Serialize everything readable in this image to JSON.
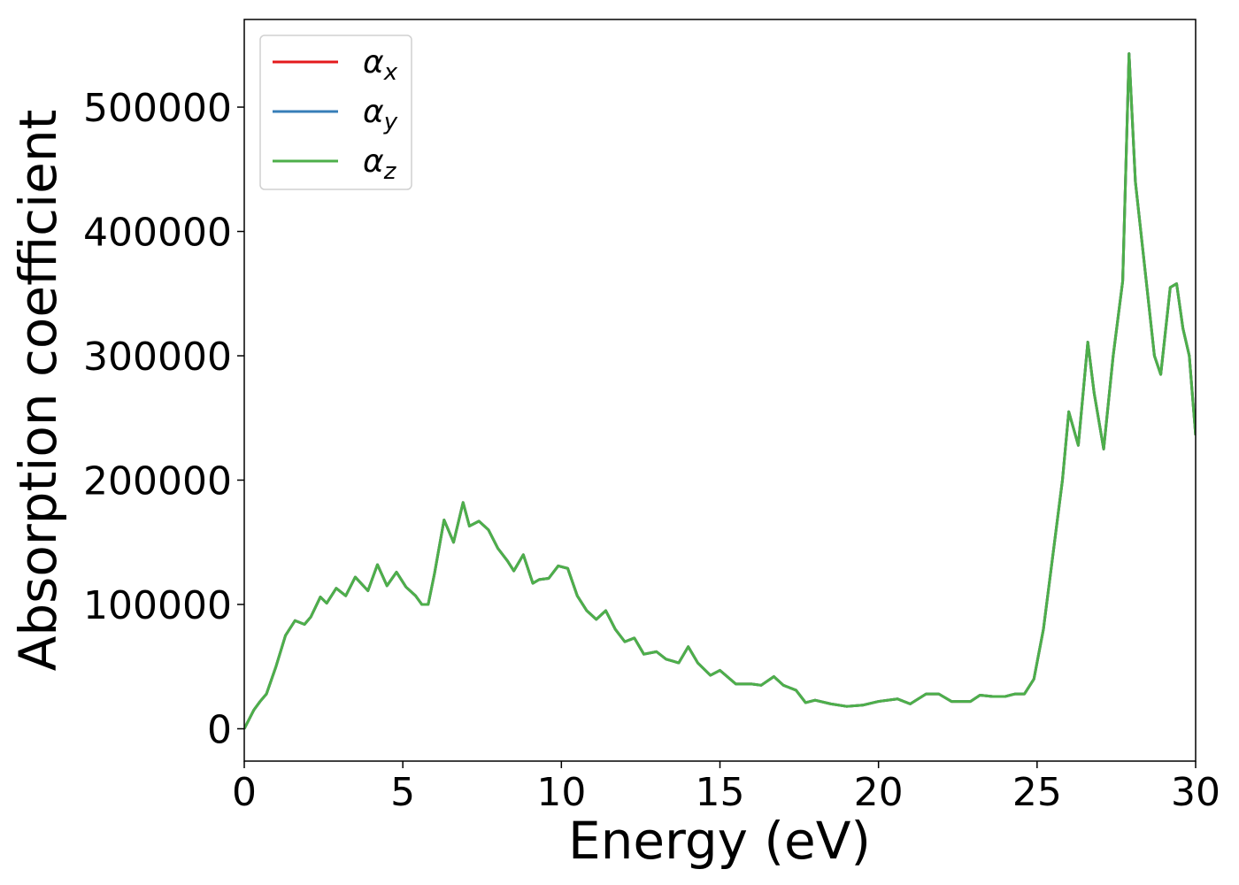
{
  "chart_data": {
    "type": "line",
    "xlabel": "Energy (eV)",
    "ylabel": "Absorption coefficient",
    "x": [
      0,
      0.3,
      0.5,
      0.7,
      1.0,
      1.3,
      1.6,
      1.9,
      2.1,
      2.4,
      2.6,
      2.9,
      3.2,
      3.5,
      3.9,
      4.2,
      4.5,
      4.8,
      5.1,
      5.4,
      5.6,
      5.8,
      6.0,
      6.3,
      6.6,
      6.9,
      7.1,
      7.4,
      7.7,
      8.0,
      8.3,
      8.5,
      8.8,
      9.1,
      9.3,
      9.6,
      9.9,
      10.2,
      10.5,
      10.8,
      11.1,
      11.4,
      11.7,
      12.0,
      12.3,
      12.6,
      13.0,
      13.3,
      13.7,
      14.0,
      14.3,
      14.7,
      15.0,
      15.5,
      16.0,
      16.3,
      16.7,
      17.0,
      17.4,
      17.7,
      18.0,
      18.5,
      19.0,
      19.5,
      20.0,
      20.6,
      21.0,
      21.5,
      21.9,
      22.3,
      22.9,
      23.2,
      23.6,
      24.0,
      24.3,
      24.6,
      24.9,
      25.2,
      25.5,
      25.8,
      26.0,
      26.3,
      26.6,
      26.8,
      27.1,
      27.4,
      27.7,
      27.9,
      28.1,
      28.4,
      28.7,
      28.9,
      29.2,
      29.4,
      29.6,
      29.8,
      30.0
    ],
    "series": [
      {
        "name": "αx",
        "color": "#e41a1c",
        "values": [
          0,
          15000,
          22000,
          28000,
          50000,
          75000,
          87000,
          84000,
          90000,
          106000,
          101000,
          113000,
          107000,
          122000,
          111000,
          132000,
          115000,
          126000,
          114000,
          107000,
          100000,
          100000,
          125000,
          168000,
          150000,
          182000,
          163000,
          167000,
          160000,
          145000,
          135000,
          127000,
          140000,
          117000,
          120000,
          121000,
          131000,
          129000,
          107000,
          95000,
          88000,
          95000,
          80000,
          70000,
          73000,
          60000,
          62000,
          56000,
          53000,
          66000,
          53000,
          43000,
          47000,
          36000,
          36000,
          35000,
          42000,
          35000,
          31000,
          21000,
          23000,
          20000,
          18000,
          19000,
          22000,
          24000,
          20000,
          28000,
          28000,
          22000,
          22000,
          27000,
          26000,
          26000,
          28000,
          28000,
          40000,
          80000,
          140000,
          200000,
          255000,
          228000,
          311000,
          270000,
          225000,
          300000,
          360000,
          543000,
          440000,
          370000,
          300000,
          285000,
          355000,
          358000,
          322000,
          300000,
          236000
        ]
      },
      {
        "name": "αy",
        "color": "#377eb8",
        "values": [
          0,
          15000,
          22000,
          28000,
          50000,
          75000,
          87000,
          84000,
          90000,
          106000,
          101000,
          113000,
          107000,
          122000,
          111000,
          132000,
          115000,
          126000,
          114000,
          107000,
          100000,
          100000,
          125000,
          168000,
          150000,
          182000,
          163000,
          167000,
          160000,
          145000,
          135000,
          127000,
          140000,
          117000,
          120000,
          121000,
          131000,
          129000,
          107000,
          95000,
          88000,
          95000,
          80000,
          70000,
          73000,
          60000,
          62000,
          56000,
          53000,
          66000,
          53000,
          43000,
          47000,
          36000,
          36000,
          35000,
          42000,
          35000,
          31000,
          21000,
          23000,
          20000,
          18000,
          19000,
          22000,
          24000,
          20000,
          28000,
          28000,
          22000,
          22000,
          27000,
          26000,
          26000,
          28000,
          28000,
          40000,
          80000,
          140000,
          200000,
          255000,
          228000,
          311000,
          270000,
          225000,
          300000,
          360000,
          543000,
          440000,
          370000,
          300000,
          285000,
          355000,
          358000,
          322000,
          300000,
          236000
        ]
      },
      {
        "name": "αz",
        "color": "#4daf4a",
        "values": [
          0,
          15000,
          22000,
          28000,
          50000,
          75000,
          87000,
          84000,
          90000,
          106000,
          101000,
          113000,
          107000,
          122000,
          111000,
          132000,
          115000,
          126000,
          114000,
          107000,
          100000,
          100000,
          125000,
          168000,
          150000,
          182000,
          163000,
          167000,
          160000,
          145000,
          135000,
          127000,
          140000,
          117000,
          120000,
          121000,
          131000,
          129000,
          107000,
          95000,
          88000,
          95000,
          80000,
          70000,
          73000,
          60000,
          62000,
          56000,
          53000,
          66000,
          53000,
          43000,
          47000,
          36000,
          36000,
          35000,
          42000,
          35000,
          31000,
          21000,
          23000,
          20000,
          18000,
          19000,
          22000,
          24000,
          20000,
          28000,
          28000,
          22000,
          22000,
          27000,
          26000,
          26000,
          28000,
          28000,
          40000,
          80000,
          140000,
          200000,
          255000,
          228000,
          311000,
          270000,
          225000,
          300000,
          360000,
          543000,
          440000,
          370000,
          300000,
          285000,
          355000,
          358000,
          322000,
          300000,
          236000
        ]
      }
    ],
    "xlim": [
      0,
      30
    ],
    "xticks": [
      0,
      5,
      10,
      15,
      20,
      25,
      30
    ],
    "ylim": [
      -26000,
      570500
    ],
    "yticks": [
      0,
      100000,
      200000,
      300000,
      400000,
      500000
    ],
    "grid": false,
    "legend": "upper left"
  }
}
